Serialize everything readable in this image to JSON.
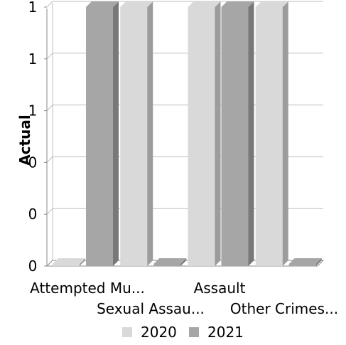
{
  "chart_data": {
    "type": "bar",
    "categories": [
      "Attempted Mu...",
      "Sexual Assau...",
      "Assault",
      "Other Crimes..."
    ],
    "series": [
      {
        "name": "2020",
        "values": [
          0,
          1,
          1,
          1
        ]
      },
      {
        "name": "2021",
        "values": [
          1,
          0,
          1,
          0
        ]
      }
    ],
    "ylabel": "Actual",
    "xlabel": "",
    "y_tick_labels": [
      "0",
      "0",
      "0",
      "1",
      "1",
      "1"
    ],
    "ylim": [
      0,
      1
    ],
    "grid": true,
    "legend_position": "bottom",
    "colors": {
      "series_2020": "#d9d9d9",
      "series_2021": "#a6a6a6"
    }
  }
}
